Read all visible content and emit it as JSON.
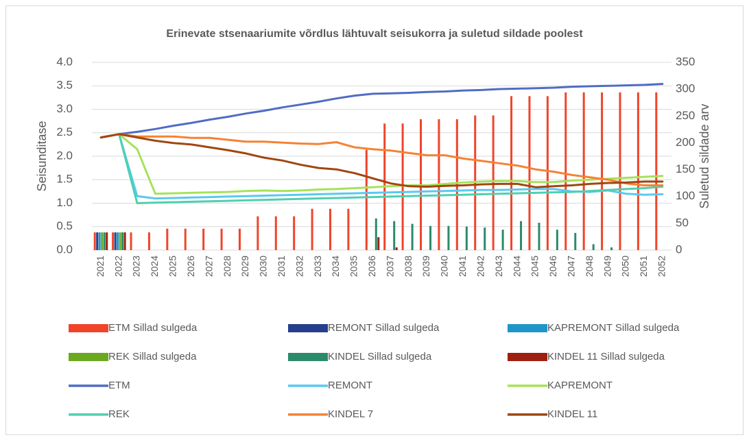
{
  "chart_data": {
    "type": "bar-line",
    "title": "Erinevate stsenaariumite võrdlus lähtuvalt seisukorra ja suletud sildade poolest",
    "y_label": "Seisunditase",
    "y2_label": "Suletud sildade arv",
    "categories": [
      "2021",
      "2022",
      "2023",
      "2024",
      "2025",
      "2026",
      "2027",
      "2028",
      "2029",
      "2030",
      "2031",
      "2032",
      "2033",
      "2034",
      "2035",
      "2036",
      "2037",
      "2038",
      "2039",
      "2040",
      "2041",
      "2042",
      "2043",
      "2044",
      "2045",
      "2046",
      "2047",
      "2048",
      "2049",
      "2050",
      "2051",
      "2052"
    ],
    "ylim": [
      0,
      4
    ],
    "yticks": [
      {
        "value": 0,
        "label": "0.0"
      },
      0.5,
      {
        "value": 1,
        "label": "1.0"
      },
      1.5,
      {
        "value": 2,
        "label": "2.0"
      },
      2.5,
      {
        "value": 3,
        "label": "3.0"
      },
      3.5,
      {
        "value": 4,
        "label": "4.0"
      }
    ],
    "y2lim": [
      0,
      350
    ],
    "y2ticks": [
      0,
      50,
      100,
      150,
      200,
      250,
      300,
      350
    ],
    "grid": true,
    "legend": "bottom",
    "series": [
      {
        "name": "ETM Sillad sulgeda",
        "type": "bar",
        "axis": "y2",
        "color": "#f0442a",
        "values": [
          33,
          33,
          33,
          33,
          40,
          40,
          40,
          40,
          40,
          63,
          63,
          63,
          77,
          77,
          77,
          187,
          236,
          236,
          244,
          244,
          244,
          251,
          251,
          287,
          287,
          287,
          294,
          294,
          294,
          294,
          294,
          294
        ]
      },
      {
        "name": "REMONT Sillad sulgeda",
        "type": "bar",
        "axis": "y2",
        "color": "#263f8c",
        "values": [
          33,
          33,
          0,
          0,
          0,
          0,
          0,
          0,
          0,
          0,
          0,
          0,
          0,
          0,
          0,
          0,
          0,
          0,
          0,
          0,
          0,
          0,
          0,
          0,
          0,
          0,
          0,
          0,
          0,
          0,
          0,
          0
        ]
      },
      {
        "name": "KAPREMONT Sillad sulgeda",
        "type": "bar",
        "axis": "y2",
        "color": "#1f96c8",
        "values": [
          33,
          33,
          0,
          0,
          0,
          0,
          0,
          0,
          0,
          0,
          0,
          0,
          0,
          0,
          0,
          0,
          0,
          0,
          0,
          0,
          0,
          0,
          0,
          0,
          0,
          0,
          0,
          0,
          0,
          0,
          0,
          0
        ]
      },
      {
        "name": "REK Sillad sulgeda",
        "type": "bar",
        "axis": "y2",
        "color": "#6aa81e",
        "values": [
          33,
          33,
          0,
          0,
          0,
          0,
          0,
          0,
          0,
          0,
          0,
          0,
          0,
          0,
          0,
          0,
          0,
          0,
          0,
          0,
          0,
          0,
          0,
          0,
          0,
          0,
          0,
          0,
          0,
          0,
          0,
          0
        ]
      },
      {
        "name": "KINDEL Sillad sulgeda",
        "type": "bar",
        "axis": "y2",
        "color": "#2b8a6a",
        "values": [
          33,
          33,
          0,
          0,
          0,
          0,
          0,
          0,
          0,
          0,
          0,
          0,
          0,
          0,
          0,
          59,
          54,
          49,
          45,
          45,
          44,
          42,
          38,
          54,
          51,
          38,
          32,
          11,
          5,
          0,
          0,
          0
        ]
      },
      {
        "name": "KINDEL 11 Sillad sulgeda",
        "type": "bar",
        "axis": "y2",
        "color": "#9e1f10",
        "values": [
          33,
          33,
          0,
          0,
          0,
          0,
          0,
          0,
          0,
          0,
          0,
          0,
          0,
          0,
          0,
          24,
          5,
          0,
          0,
          0,
          0,
          0,
          0,
          0,
          0,
          0,
          0,
          0,
          0,
          0,
          0,
          0
        ]
      },
      {
        "name": "ETM",
        "type": "line",
        "color": "#4f6cc4",
        "values": [
          2.4,
          2.47,
          2.52,
          2.58,
          2.65,
          2.71,
          2.78,
          2.84,
          2.91,
          2.97,
          3.04,
          3.1,
          3.16,
          3.23,
          3.29,
          3.33,
          3.34,
          3.35,
          3.37,
          3.38,
          3.4,
          3.41,
          3.43,
          3.44,
          3.45,
          3.46,
          3.48,
          3.49,
          3.5,
          3.51,
          3.52,
          3.54
        ]
      },
      {
        "name": "REMONT",
        "type": "line",
        "color": "#5bc8f0",
        "values": [
          2.4,
          2.47,
          1.15,
          1.1,
          1.11,
          1.12,
          1.13,
          1.14,
          1.15,
          1.16,
          1.17,
          1.18,
          1.19,
          1.2,
          1.21,
          1.22,
          1.23,
          1.24,
          1.25,
          1.26,
          1.27,
          1.28,
          1.28,
          1.29,
          1.3,
          1.3,
          1.25,
          1.24,
          1.27,
          1.2,
          1.18,
          1.19
        ]
      },
      {
        "name": "KAPREMONT",
        "type": "line",
        "color": "#a6e25a",
        "values": [
          2.4,
          2.47,
          2.15,
          1.2,
          1.21,
          1.22,
          1.23,
          1.24,
          1.26,
          1.27,
          1.26,
          1.27,
          1.29,
          1.3,
          1.32,
          1.34,
          1.36,
          1.38,
          1.38,
          1.41,
          1.44,
          1.46,
          1.47,
          1.47,
          1.45,
          1.45,
          1.48,
          1.5,
          1.52,
          1.54,
          1.56,
          1.58
        ]
      },
      {
        "name": "REK",
        "type": "line",
        "color": "#4fcfb0",
        "values": [
          2.4,
          2.47,
          1.0,
          1.01,
          1.02,
          1.03,
          1.04,
          1.05,
          1.06,
          1.07,
          1.08,
          1.09,
          1.1,
          1.11,
          1.12,
          1.13,
          1.14,
          1.15,
          1.16,
          1.17,
          1.18,
          1.19,
          1.2,
          1.21,
          1.22,
          1.23,
          1.24,
          1.26,
          1.28,
          1.3,
          1.32,
          1.35
        ]
      },
      {
        "name": "KINDEL 7",
        "type": "line",
        "color": "#f58233",
        "values": [
          2.4,
          2.47,
          2.42,
          2.42,
          2.42,
          2.39,
          2.39,
          2.35,
          2.31,
          2.31,
          2.29,
          2.27,
          2.26,
          2.3,
          2.19,
          2.15,
          2.12,
          2.07,
          2.02,
          2.02,
          1.95,
          1.9,
          1.85,
          1.8,
          1.72,
          1.67,
          1.6,
          1.55,
          1.5,
          1.42,
          1.38,
          1.38
        ]
      },
      {
        "name": "KINDEL 11",
        "type": "line",
        "color": "#a0460f",
        "values": [
          2.4,
          2.47,
          2.4,
          2.33,
          2.28,
          2.25,
          2.19,
          2.13,
          2.06,
          1.97,
          1.91,
          1.82,
          1.75,
          1.72,
          1.64,
          1.53,
          1.42,
          1.36,
          1.35,
          1.37,
          1.38,
          1.4,
          1.41,
          1.41,
          1.34,
          1.36,
          1.38,
          1.41,
          1.43,
          1.44,
          1.46,
          1.46
        ]
      }
    ]
  }
}
